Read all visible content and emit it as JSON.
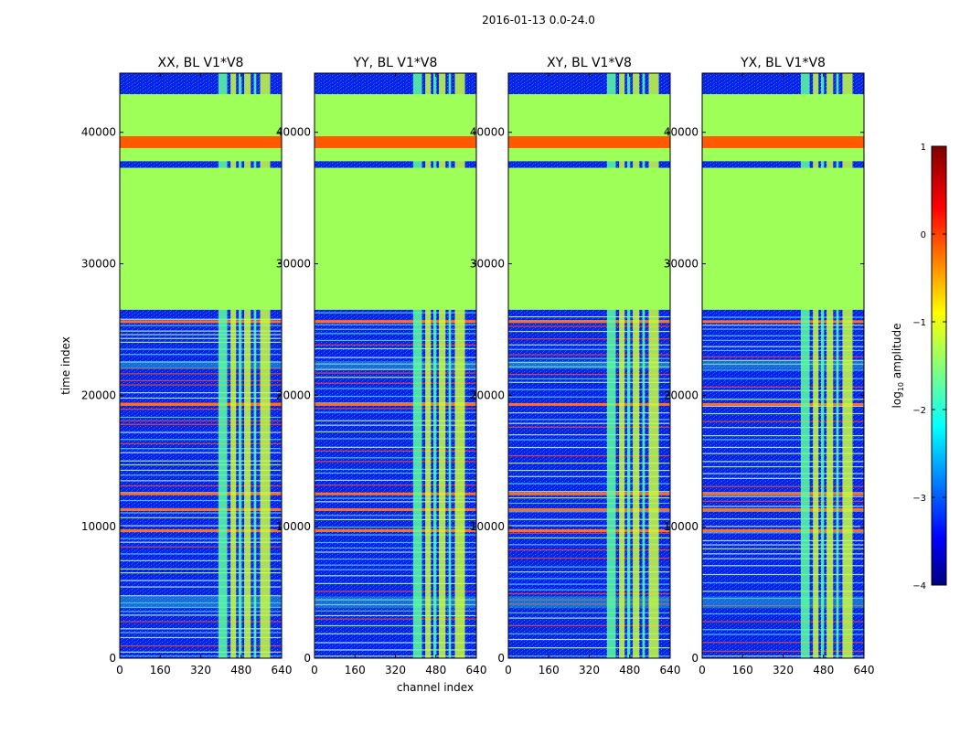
{
  "figure_title": "2016-01-13 0.0-24.0",
  "chart_data": {
    "type": "heatmap",
    "xlabel": "channel index",
    "ylabel": "time index",
    "xlim": [
      0,
      640
    ],
    "ylim": [
      0,
      44500
    ],
    "x_ticks": [
      0,
      160,
      320,
      480,
      640
    ],
    "y_ticks": [
      0,
      10000,
      20000,
      30000,
      40000
    ],
    "panels": [
      {
        "title": "XX, BL V1*V8",
        "polarization": "XX"
      },
      {
        "title": "YY, BL V1*V8",
        "polarization": "YY"
      },
      {
        "title": "XY, BL V1*V8",
        "polarization": "XY"
      },
      {
        "title": "YX, BL V1*V8",
        "polarization": "YX"
      }
    ],
    "colorbar": {
      "label_main": "log",
      "label_sub": "10",
      "label_tail": " amplitude",
      "range": [
        -4,
        1
      ],
      "ticks": [
        1,
        0,
        -1,
        -2,
        -3,
        -4
      ],
      "colormap": "jet"
    },
    "regions": {
      "flagged_fill_log_amplitude": -1.0,
      "flagged_time_ranges": [
        [
          26500,
          37300
        ],
        [
          37800,
          42900
        ]
      ],
      "flagged_band_time_range": [
        38800,
        39700
      ],
      "flagged_band_log_amplitude": 0.2,
      "rfi_channel_ranges": [
        [
          390,
          425
        ],
        [
          438,
          460
        ],
        [
          470,
          482
        ],
        [
          492,
          518
        ],
        [
          530,
          540
        ],
        [
          555,
          595
        ]
      ],
      "rfi_hot_time_rows": [
        9700,
        11300,
        12500,
        19300,
        25600
      ]
    }
  },
  "colors": {
    "flagged": "#9dff57",
    "band": "#ff5a00",
    "background_low": "#1010d8",
    "background_mid": "#0040ff",
    "rfi": "#5effa0"
  }
}
